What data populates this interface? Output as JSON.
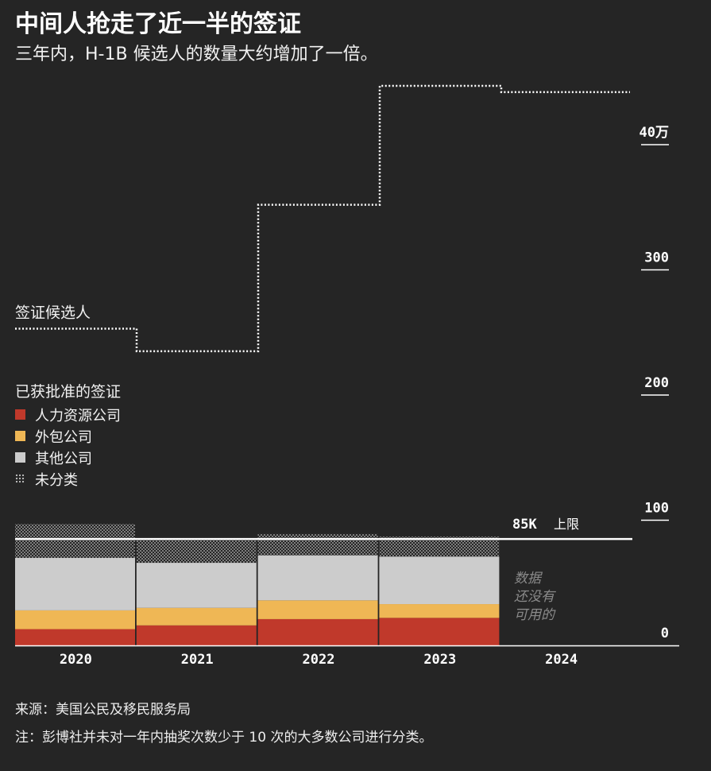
{
  "header": {
    "title": "中间人抢走了近一半的签证",
    "subtitle": "三年内，H-1B 候选人的数量大约增加了一倍。"
  },
  "legend": {
    "title": "已获批准的签证",
    "items": [
      {
        "label": "人力资源公司",
        "color": "#c0392b"
      },
      {
        "label": "外包公司",
        "color": "#efb755"
      },
      {
        "label": "其他公司",
        "color": "#cccccc"
      },
      {
        "label": "未分类",
        "color": "dotted"
      }
    ]
  },
  "chart_data": {
    "type": "bar",
    "stacked": true,
    "categories": [
      "2020",
      "2021",
      "2022",
      "2023",
      "2024"
    ],
    "series": [
      {
        "name": "人力资源公司",
        "values": [
          13,
          16,
          21,
          22,
          null
        ]
      },
      {
        "name": "外包公司",
        "values": [
          15,
          14,
          15,
          11,
          null
        ]
      },
      {
        "name": "其他公司",
        "values": [
          42,
          36,
          36,
          38,
          null
        ]
      },
      {
        "name": "未分类",
        "values": [
          27,
          18,
          17,
          16,
          null
        ]
      }
    ],
    "line_series": {
      "name": "签证候选人",
      "values": [
        253,
        235,
        352,
        447,
        442
      ]
    },
    "cap": {
      "value": 85,
      "label_value": "85K",
      "label_text": "上限"
    },
    "y_ticks": [
      {
        "value": 0,
        "label": "0"
      },
      {
        "value": 100,
        "label": "100"
      },
      {
        "value": 200,
        "label": "200"
      },
      {
        "value": 300,
        "label": "300"
      },
      {
        "value": 400,
        "label": "40万"
      }
    ],
    "ylim": [
      0,
      460
    ],
    "no_data_note": [
      "数据",
      "还没有",
      "可用的"
    ],
    "colors": {
      "hr": "#c0392b",
      "outsourcing": "#efb755",
      "other": "#cccccc",
      "unclassified": "#bdbdbd",
      "background": "#252525"
    }
  },
  "footer": {
    "source": "来源：美国公民及移民服务局",
    "note": "注：彭博社并未对一年内抽奖次数少于 10 次的大多数公司进行分类。"
  }
}
